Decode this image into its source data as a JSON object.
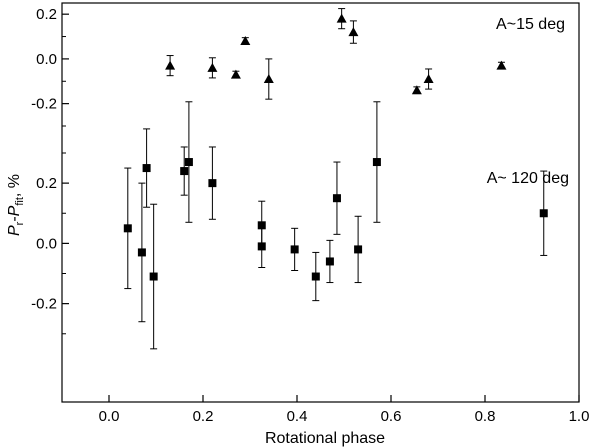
{
  "chart_data": {
    "type": "scatter",
    "xlabel": "Rotational phase",
    "ylabel": {
      "P": "P",
      "r": "r",
      "dash": "-",
      "fit": "fit",
      "unit": ", %"
    },
    "xlim": [
      -0.1,
      1.0
    ],
    "xticks": [
      "0.0",
      "0.2",
      "0.4",
      "0.6",
      "0.8",
      "1.0"
    ],
    "xtick_values": [
      0.0,
      0.2,
      0.4,
      0.6,
      0.8,
      1.0
    ],
    "panels": [
      {
        "annotation": "A~15 deg",
        "marker": "triangle",
        "ylim": [
          -0.3,
          0.25
        ],
        "yticks": [
          "0.2",
          "0.0",
          "-0.2"
        ],
        "ytick_values": [
          0.2,
          0.0,
          -0.2
        ],
        "points": [
          {
            "x": 0.13,
            "y": -0.03,
            "err": 0.045
          },
          {
            "x": 0.22,
            "y": -0.04,
            "err": 0.045
          },
          {
            "x": 0.27,
            "y": -0.07,
            "err": 0.015
          },
          {
            "x": 0.29,
            "y": 0.08,
            "err": 0.015
          },
          {
            "x": 0.34,
            "y": -0.09,
            "err": 0.09
          },
          {
            "x": 0.495,
            "y": 0.18,
            "err": 0.045
          },
          {
            "x": 0.52,
            "y": 0.12,
            "err": 0.05
          },
          {
            "x": 0.655,
            "y": -0.14,
            "err": 0.015
          },
          {
            "x": 0.68,
            "y": -0.09,
            "err": 0.045
          },
          {
            "x": 0.835,
            "y": -0.03,
            "err": 0.015
          }
        ]
      },
      {
        "annotation": "A~ 120 deg",
        "marker": "square",
        "ylim": [
          -0.48,
          0.3
        ],
        "yticks": [
          "0.2",
          "0.0",
          "-0.2"
        ],
        "ytick_values": [
          0.2,
          0.0,
          -0.2
        ],
        "points": [
          {
            "x": 0.04,
            "y": 0.05,
            "err": 0.2
          },
          {
            "x": 0.07,
            "y": -0.03,
            "err": 0.23
          },
          {
            "x": 0.08,
            "y": 0.25,
            "err": 0.13
          },
          {
            "x": 0.095,
            "y": -0.11,
            "err": 0.24
          },
          {
            "x": 0.16,
            "y": 0.24,
            "err": 0.08
          },
          {
            "x": 0.17,
            "y": 0.27,
            "err": 0.2
          },
          {
            "x": 0.22,
            "y": 0.2,
            "err": 0.12
          },
          {
            "x": 0.325,
            "y": 0.06,
            "err": 0.08
          },
          {
            "x": 0.325,
            "y": -0.01,
            "err": 0.07
          },
          {
            "x": 0.395,
            "y": -0.02,
            "err": 0.07
          },
          {
            "x": 0.44,
            "y": -0.11,
            "err": 0.08
          },
          {
            "x": 0.47,
            "y": -0.06,
            "err": 0.07
          },
          {
            "x": 0.485,
            "y": 0.15,
            "err": 0.12
          },
          {
            "x": 0.53,
            "y": -0.02,
            "err": 0.11
          },
          {
            "x": 0.57,
            "y": 0.27,
            "err": 0.2
          },
          {
            "x": 0.925,
            "y": 0.1,
            "err": 0.14
          }
        ]
      }
    ]
  }
}
